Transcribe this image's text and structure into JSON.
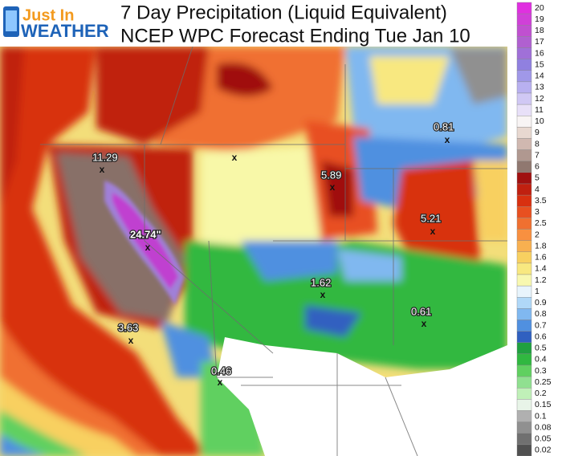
{
  "header": {
    "logo_top": "Just In",
    "logo_bottom": "WEATHER",
    "title": "7 Day Precipitation (Liquid Equivalent)",
    "subtitle": "NCEP WPC Forecast Ending Tue Jan 10"
  },
  "marker": "x",
  "map_labels": [
    "11.29",
    "24.74\"",
    "5.89",
    "0.81",
    "5.21",
    "1.62",
    "0.61",
    "3.63",
    "0.46"
  ],
  "legend": [
    {
      "label": "20",
      "color": "#e030e0"
    },
    {
      "label": "19",
      "color": "#d040d8"
    },
    {
      "label": "18",
      "color": "#c050d0"
    },
    {
      "label": "17",
      "color": "#b060d0"
    },
    {
      "label": "16",
      "color": "#a070d8"
    },
    {
      "label": "15",
      "color": "#9080e0"
    },
    {
      "label": "14",
      "color": "#a098e8"
    },
    {
      "label": "13",
      "color": "#b8b0f0"
    },
    {
      "label": "12",
      "color": "#d0c8f4"
    },
    {
      "label": "11",
      "color": "#e8e0f8"
    },
    {
      "label": "10",
      "color": "#f8f4f4"
    },
    {
      "label": "9",
      "color": "#e8d8d0"
    },
    {
      "label": "8",
      "color": "#d0b8b0"
    },
    {
      "label": "7",
      "color": "#b09890"
    },
    {
      "label": "6",
      "color": "#907870"
    },
    {
      "label": "5",
      "color": "#a01010"
    },
    {
      "label": "4",
      "color": "#c02010"
    },
    {
      "label": "3.5",
      "color": "#d83010"
    },
    {
      "label": "3",
      "color": "#e85020"
    },
    {
      "label": "2.5",
      "color": "#f07030"
    },
    {
      "label": "2",
      "color": "#f89040"
    },
    {
      "label": "1.8",
      "color": "#f8b050"
    },
    {
      "label": "1.6",
      "color": "#f8d060"
    },
    {
      "label": "1.4",
      "color": "#f8e880"
    },
    {
      "label": "1.2",
      "color": "#f8f8b0"
    },
    {
      "label": "1",
      "color": "#e8f4fc"
    },
    {
      "label": "0.9",
      "color": "#b0d8f8"
    },
    {
      "label": "0.8",
      "color": "#80b8f0"
    },
    {
      "label": "0.7",
      "color": "#5090e0"
    },
    {
      "label": "0.6",
      "color": "#3060c0"
    },
    {
      "label": "0.5",
      "color": "#20a040"
    },
    {
      "label": "0.4",
      "color": "#30b840"
    },
    {
      "label": "0.3",
      "color": "#60d060"
    },
    {
      "label": "0.25",
      "color": "#90e090"
    },
    {
      "label": "0.2",
      "color": "#c0f0b8"
    },
    {
      "label": "0.15",
      "color": "#e8f4e8"
    },
    {
      "label": "0.1",
      "color": "#b0b0b0"
    },
    {
      "label": "0.08",
      "color": "#909090"
    },
    {
      "label": "0.05",
      "color": "#707070"
    },
    {
      "label": "0.02",
      "color": "#505050"
    }
  ]
}
